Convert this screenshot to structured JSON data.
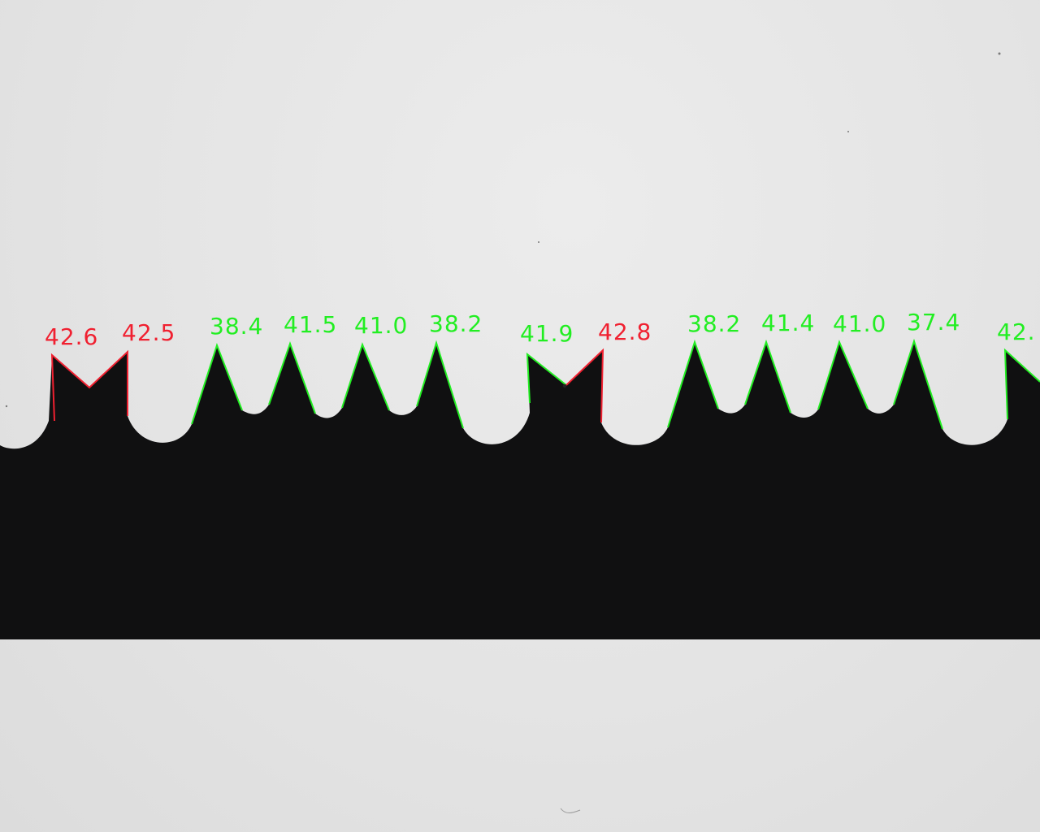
{
  "colors": {
    "background": "#e4e4e4",
    "blade": "#101011",
    "ok": "#22ee22",
    "fail": "#f02030"
  },
  "tooth_angles": [
    {
      "value": "42.6",
      "status": "fail"
    },
    {
      "value": "42.5",
      "status": "fail"
    },
    {
      "value": "38.4",
      "status": "ok"
    },
    {
      "value": "41.5",
      "status": "ok"
    },
    {
      "value": "41.0",
      "status": "ok"
    },
    {
      "value": "38.2",
      "status": "ok"
    },
    {
      "value": "41.9",
      "status": "ok"
    },
    {
      "value": "42.8",
      "status": "fail"
    },
    {
      "value": "38.2",
      "status": "ok"
    },
    {
      "value": "41.4",
      "status": "ok"
    },
    {
      "value": "41.0",
      "status": "ok"
    },
    {
      "value": "37.4",
      "status": "ok"
    },
    {
      "value": "42.",
      "status": "ok"
    }
  ]
}
